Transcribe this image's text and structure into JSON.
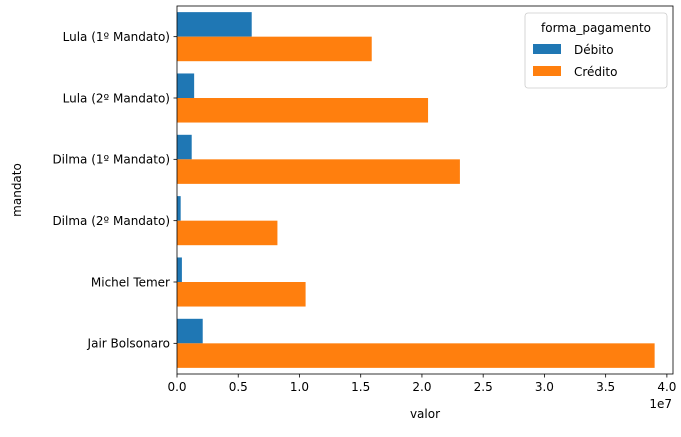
{
  "chart_data": {
    "type": "bar",
    "orientation": "horizontal",
    "title": "",
    "xlabel": "valor",
    "ylabel": "mandato",
    "x_offset_text": "1e7",
    "xlim": [
      0,
      40500000
    ],
    "x_ticks": [
      0,
      5000000,
      10000000,
      15000000,
      20000000,
      25000000,
      30000000,
      35000000,
      40000000
    ],
    "x_tick_labels": [
      "0.0",
      "0.5",
      "1.0",
      "1.5",
      "2.0",
      "2.5",
      "3.0",
      "3.5",
      "4.0"
    ],
    "categories": [
      "Lula (1º Mandato)",
      "Lula (2º Mandato)",
      "Dilma (1º Mandato)",
      "Dilma (2º Mandato)",
      "Michel Temer",
      "Jair Bolsonaro"
    ],
    "series": [
      {
        "name": "Débito",
        "color": "#1f77b4",
        "values": [
          6100000,
          1400000,
          1200000,
          300000,
          400000,
          2100000
        ]
      },
      {
        "name": "Crédito",
        "color": "#ff7f0e",
        "values": [
          15900000,
          20500000,
          23100000,
          8200000,
          10500000,
          39000000
        ]
      }
    ],
    "legend": {
      "title": "forma_pagamento",
      "position": "top-right"
    },
    "grid": false
  }
}
